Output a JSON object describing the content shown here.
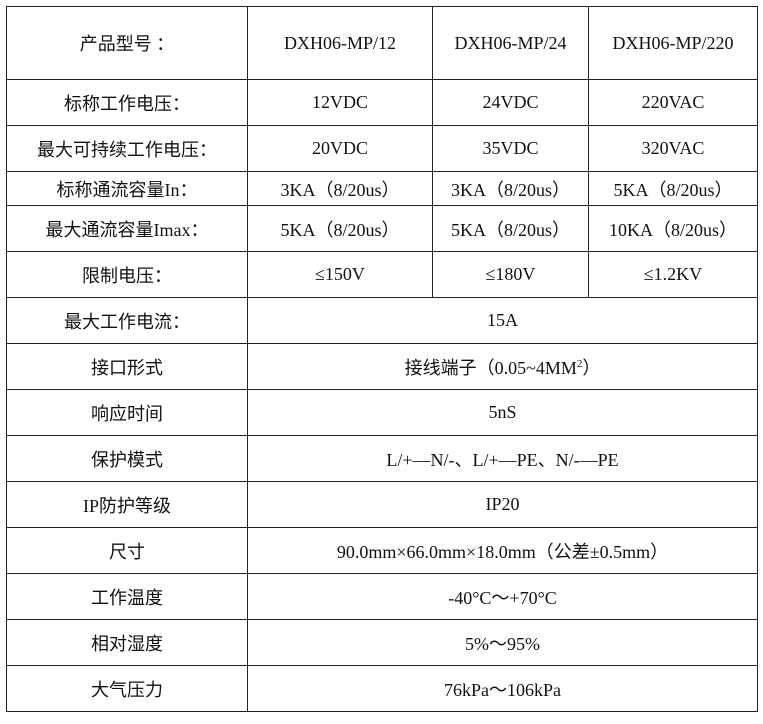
{
  "header": {
    "label": "产品型号 ：",
    "models": [
      "DXH06-MP/12",
      "DXH06-MP/24",
      "DXH06-MP/220"
    ]
  },
  "per_model_rows": [
    {
      "label": "标称工作电压：",
      "values": [
        "12VDC",
        "24VDC",
        "220VAC"
      ]
    },
    {
      "label": "最大可持续工作电压：",
      "values": [
        "20VDC",
        "35VDC",
        "320VAC"
      ]
    },
    {
      "label": "标称通流容量In：",
      "values": [
        "3KA（8/20us）",
        "3KA（8/20us）",
        "5KA（8/20us）"
      ]
    },
    {
      "label": "最大通流容量Imax：",
      "values": [
        "5KA（8/20us）",
        "5KA（8/20us）",
        "10KA（8/20us）"
      ]
    },
    {
      "label": "限制电压：",
      "values": [
        "≤150V",
        "≤180V",
        "≤1.2KV"
      ]
    }
  ],
  "shared_rows": [
    {
      "label": "最大工作电流：",
      "value": "15A"
    },
    {
      "label": "接口形式",
      "value": "接线端子（0.05~4MM",
      "sup": "2",
      "suffix": "）"
    },
    {
      "label": "响应时间",
      "value": "5nS"
    },
    {
      "label": "保护模式",
      "value": "L/+—N/-、L/+—PE、N/-—PE"
    },
    {
      "label": "IP防护等级",
      "value": "IP20"
    },
    {
      "label": "尺寸",
      "value": "90.0mm×66.0mm×18.0mm（公差±0.5mm）"
    },
    {
      "label": "工作温度",
      "value": "-40°C～+70°C"
    },
    {
      "label": "相对湿度",
      "value": "5%～95%"
    },
    {
      "label": "大气压力",
      "value": "76kPa～106kPa"
    }
  ]
}
